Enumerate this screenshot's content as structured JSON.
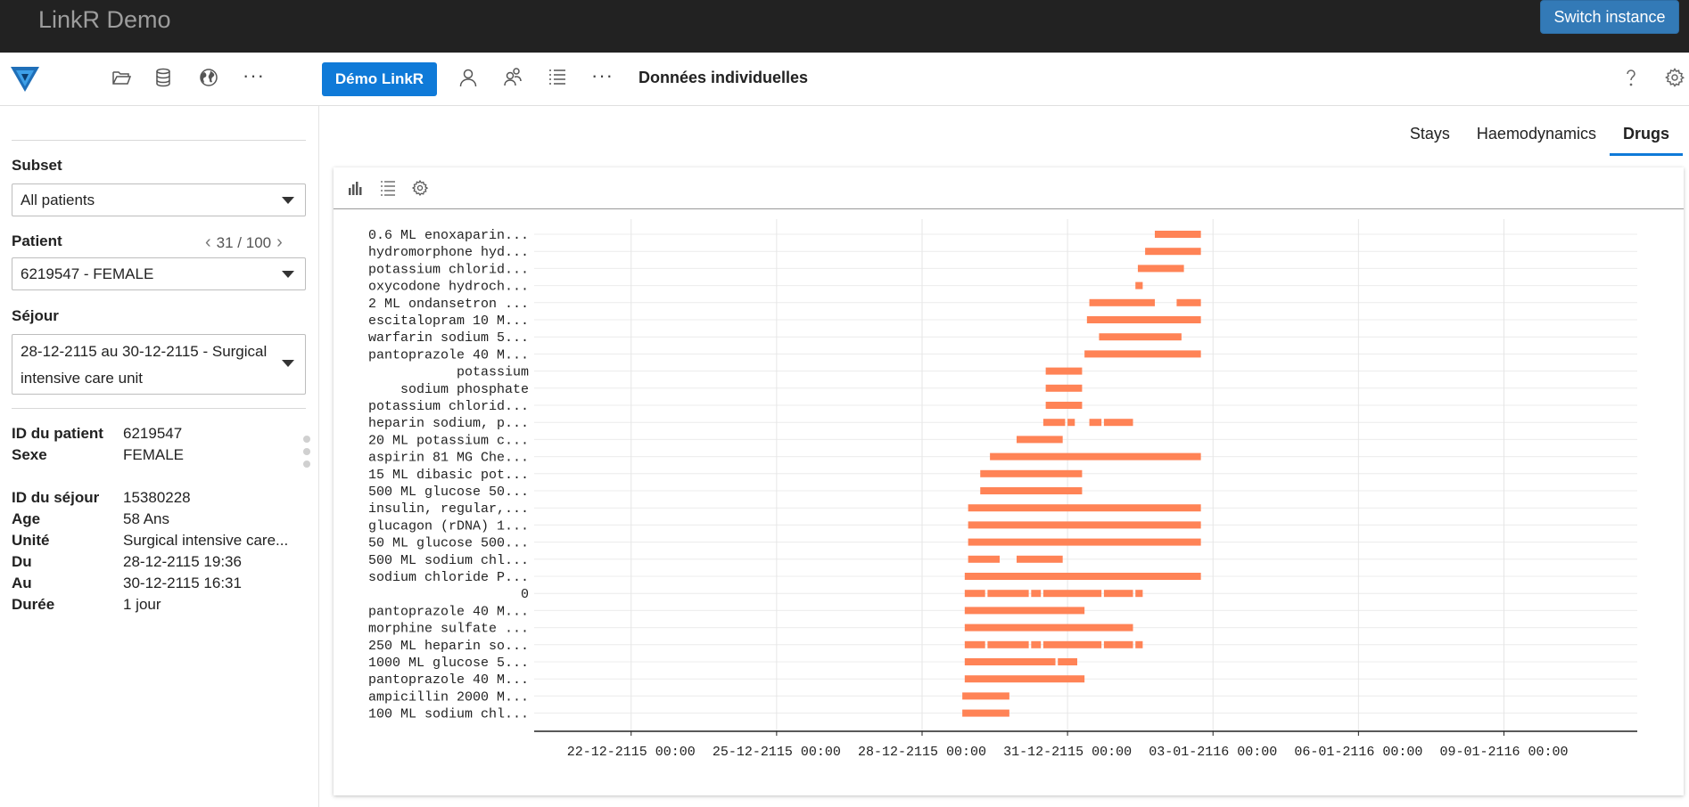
{
  "app": {
    "title": "LinkR Demo",
    "switch_label": "Switch instance"
  },
  "header": {
    "demo_button": "Démo LinkR",
    "page_title": "Données individuelles",
    "left_icons": [
      "folder-open-icon",
      "database-icon",
      "globe-icon",
      "more-dots-icon"
    ],
    "right_icons": [
      "person-icon",
      "people-icon",
      "list-icon",
      "more-dots-icon"
    ],
    "help_icon": "question-icon",
    "settings_icon": "gear-icon"
  },
  "sidebar": {
    "subset_label": "Subset",
    "subset_value": "All patients",
    "patient_label": "Patient",
    "patient_pager": "31 / 100",
    "patient_value": "6219547 - FEMALE",
    "stay_label": "Séjour",
    "stay_value": "28-12-2115 au 30-12-2115 - Surgical intensive care unit",
    "patient_info": [
      {
        "key": "ID du patient",
        "value": "6219547"
      },
      {
        "key": "Sexe",
        "value": "FEMALE"
      }
    ],
    "stay_info": [
      {
        "key": "ID du séjour",
        "value": "15380228"
      },
      {
        "key": "Age",
        "value": "58 Ans"
      },
      {
        "key": "Unité",
        "value": "Surgical intensive care..."
      },
      {
        "key": "Du",
        "value": "28-12-2115 19:36"
      },
      {
        "key": "Au",
        "value": "30-12-2115 16:31"
      },
      {
        "key": "Durée",
        "value": "1 jour"
      }
    ]
  },
  "tabs": [
    {
      "label": "Stays",
      "active": false
    },
    {
      "label": "Haemodynamics",
      "active": false
    },
    {
      "label": "Drugs",
      "active": true
    }
  ],
  "toolbar_icons": [
    "bar-chart-icon",
    "list-icon",
    "gear-icon"
  ],
  "colors": {
    "bar": "#ff8356",
    "accent": "#0f7ad8",
    "switch": "#337ab7",
    "topbar": "#222222"
  },
  "chart_data": {
    "type": "timeline",
    "title": "",
    "xlabel": "",
    "ylabel": "",
    "grid": true,
    "x_unit": "days since 22-12-2115 00:00",
    "xlim": [
      -2.0,
      20.75
    ],
    "x_ticks": [
      {
        "label": "22-12-2115 00:00",
        "value": 0
      },
      {
        "label": "25-12-2115 00:00",
        "value": 3
      },
      {
        "label": "28-12-2115 00:00",
        "value": 6
      },
      {
        "label": "31-12-2115 00:00",
        "value": 9
      },
      {
        "label": "03-01-2116 00:00",
        "value": 12
      },
      {
        "label": "06-01-2116 00:00",
        "value": 15
      },
      {
        "label": "09-01-2116 00:00",
        "value": 18
      }
    ],
    "rows": [
      {
        "label": "0.6 ML enoxaparin...",
        "segments": [
          [
            10.8,
            11.75
          ]
        ]
      },
      {
        "label": "hydromorphone hyd...",
        "segments": [
          [
            10.6,
            11.75
          ]
        ]
      },
      {
        "label": "potassium chlorid...",
        "segments": [
          [
            10.45,
            11.4
          ]
        ]
      },
      {
        "label": "oxycodone hydroch...",
        "segments": [
          [
            10.4,
            10.55
          ]
        ]
      },
      {
        "label": "2 ML ondansetron ...",
        "segments": [
          [
            9.45,
            10.8
          ],
          [
            11.25,
            11.75
          ]
        ]
      },
      {
        "label": "escitalopram 10 M...",
        "segments": [
          [
            9.4,
            11.75
          ]
        ]
      },
      {
        "label": "warfarin sodium 5...",
        "segments": [
          [
            9.65,
            11.35
          ]
        ]
      },
      {
        "label": "pantoprazole 40 M...",
        "segments": [
          [
            9.35,
            11.75
          ]
        ]
      },
      {
        "label": "potassium",
        "segments": [
          [
            8.55,
            9.3
          ]
        ]
      },
      {
        "label": "sodium phosphate",
        "segments": [
          [
            8.55,
            9.3
          ]
        ]
      },
      {
        "label": "potassium chlorid...",
        "segments": [
          [
            8.55,
            9.3
          ]
        ]
      },
      {
        "label": "heparin sodium, p...",
        "segments": [
          [
            8.5,
            8.95
          ],
          [
            9.0,
            9.15
          ],
          [
            9.45,
            9.7
          ],
          [
            9.75,
            10.35
          ]
        ]
      },
      {
        "label": "20 ML potassium c...",
        "segments": [
          [
            7.95,
            8.9
          ]
        ]
      },
      {
        "label": "aspirin 81 MG Che...",
        "segments": [
          [
            7.4,
            11.75
          ]
        ]
      },
      {
        "label": "15 ML dibasic pot...",
        "segments": [
          [
            7.2,
            9.3
          ]
        ]
      },
      {
        "label": "500 ML glucose 50...",
        "segments": [
          [
            7.2,
            9.3
          ]
        ]
      },
      {
        "label": "insulin, regular,...",
        "segments": [
          [
            6.95,
            11.75
          ]
        ]
      },
      {
        "label": "glucagon (rDNA) 1...",
        "segments": [
          [
            6.95,
            11.75
          ]
        ]
      },
      {
        "label": "50 ML glucose 500...",
        "segments": [
          [
            6.95,
            11.75
          ]
        ]
      },
      {
        "label": "500 ML sodium chl...",
        "segments": [
          [
            6.95,
            7.6
          ],
          [
            7.95,
            8.9
          ]
        ]
      },
      {
        "label": "sodium chloride P...",
        "segments": [
          [
            6.88,
            11.75
          ]
        ]
      },
      {
        "label": "0",
        "segments": [
          [
            6.88,
            7.3
          ],
          [
            7.35,
            8.2
          ],
          [
            8.25,
            8.45
          ],
          [
            8.5,
            9.7
          ],
          [
            9.75,
            10.35
          ],
          [
            10.4,
            10.55
          ]
        ]
      },
      {
        "label": "pantoprazole 40 M...",
        "segments": [
          [
            6.88,
            9.35
          ]
        ]
      },
      {
        "label": "morphine sulfate ...",
        "segments": [
          [
            6.88,
            10.35
          ]
        ]
      },
      {
        "label": "250 ML heparin so...",
        "segments": [
          [
            6.88,
            7.3
          ],
          [
            7.35,
            8.2
          ],
          [
            8.25,
            8.45
          ],
          [
            8.5,
            9.7
          ],
          [
            9.75,
            10.35
          ],
          [
            10.4,
            10.55
          ]
        ]
      },
      {
        "label": "1000 ML glucose 5...",
        "segments": [
          [
            6.88,
            8.75
          ],
          [
            8.8,
            9.2
          ]
        ]
      },
      {
        "label": "pantoprazole 40 M...",
        "segments": [
          [
            6.88,
            9.35
          ]
        ]
      },
      {
        "label": "ampicillin 2000 M...",
        "segments": [
          [
            6.83,
            7.8
          ]
        ]
      },
      {
        "label": "100 ML sodium chl...",
        "segments": [
          [
            6.83,
            7.8
          ]
        ]
      }
    ]
  }
}
